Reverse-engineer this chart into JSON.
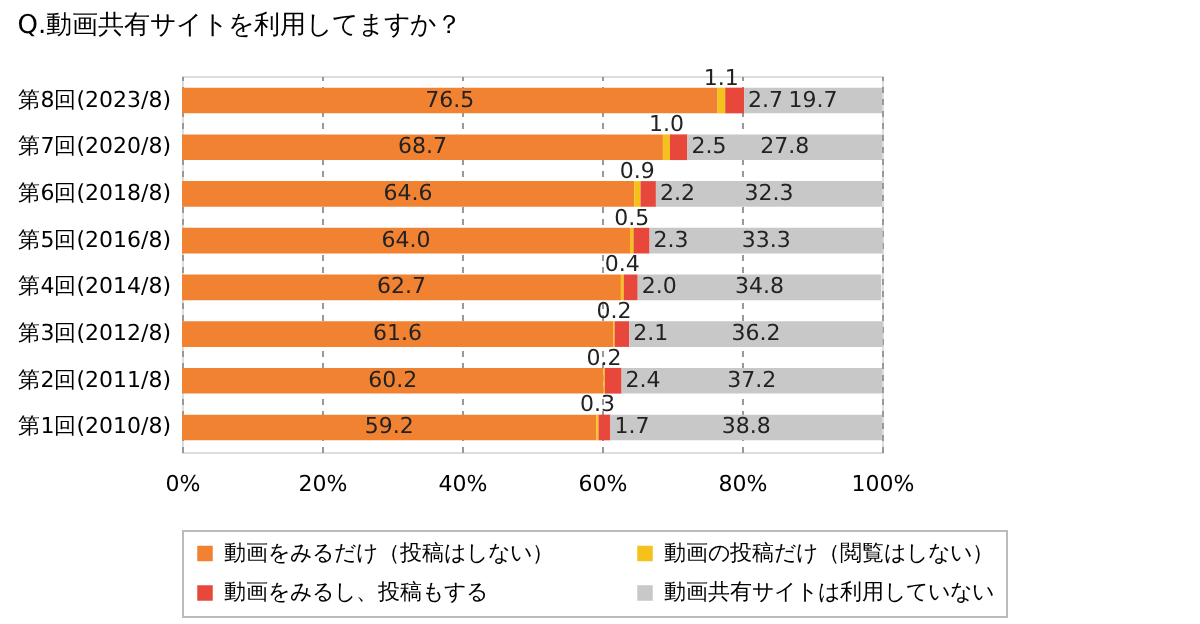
{
  "chart_data": {
    "type": "bar",
    "orientation": "horizontal",
    "stacked": true,
    "title": "Q.動画共有サイトを利用してますか？",
    "categories": [
      "第8回(2023/8)",
      "第7回(2020/8)",
      "第6回(2018/8)",
      "第5回(2016/8)",
      "第4回(2014/8)",
      "第3回(2012/8)",
      "第2回(2011/8)",
      "第1回(2010/8)"
    ],
    "series": [
      {
        "name": "動画をみるだけ（投稿はしない）",
        "color": "#f08232",
        "values": [
          76.5,
          68.7,
          64.6,
          64.0,
          62.7,
          61.6,
          60.2,
          59.2
        ],
        "value_labels": [
          "76.5",
          "68.7",
          "64.6",
          "64.0",
          "62.7",
          "61.6",
          "60.2",
          "59.2"
        ]
      },
      {
        "name": "動画の投稿だけ（閲覧はしない）",
        "color": "#f5c21b",
        "values": [
          1.1,
          1.0,
          0.9,
          0.5,
          0.4,
          0.2,
          0.2,
          0.3
        ],
        "value_labels": [
          "1.1",
          "1.0",
          "0.9",
          "0.5",
          "0.4",
          "0.2",
          "0.2",
          "0.3"
        ]
      },
      {
        "name": "動画をみるし、投稿もする",
        "color": "#e8473c",
        "values": [
          2.7,
          2.5,
          2.2,
          2.3,
          2.0,
          2.1,
          2.4,
          1.7
        ],
        "value_labels": [
          "2.7",
          "2.5",
          "2.2",
          "2.3",
          "2.0",
          "2.1",
          "2.4",
          "1.7"
        ]
      },
      {
        "name": "動画共有サイトは利用していない",
        "color": "#c8c8c8",
        "values": [
          19.7,
          27.8,
          32.3,
          33.3,
          34.8,
          36.2,
          37.2,
          38.8
        ],
        "value_labels": [
          "19.7",
          "27.8",
          "32.3",
          "33.3",
          "34.8",
          "36.2",
          "37.2",
          "38.8"
        ]
      }
    ],
    "xlim": [
      0,
      100
    ],
    "xticks": [
      {
        "value": 0,
        "label": "0%"
      },
      {
        "value": 20,
        "label": "20%"
      },
      {
        "value": 40,
        "label": "40%"
      },
      {
        "value": 60,
        "label": "60%"
      },
      {
        "value": 80,
        "label": "80%"
      },
      {
        "value": 100,
        "label": "100%"
      }
    ],
    "grid": "x",
    "legend": "bottom"
  }
}
